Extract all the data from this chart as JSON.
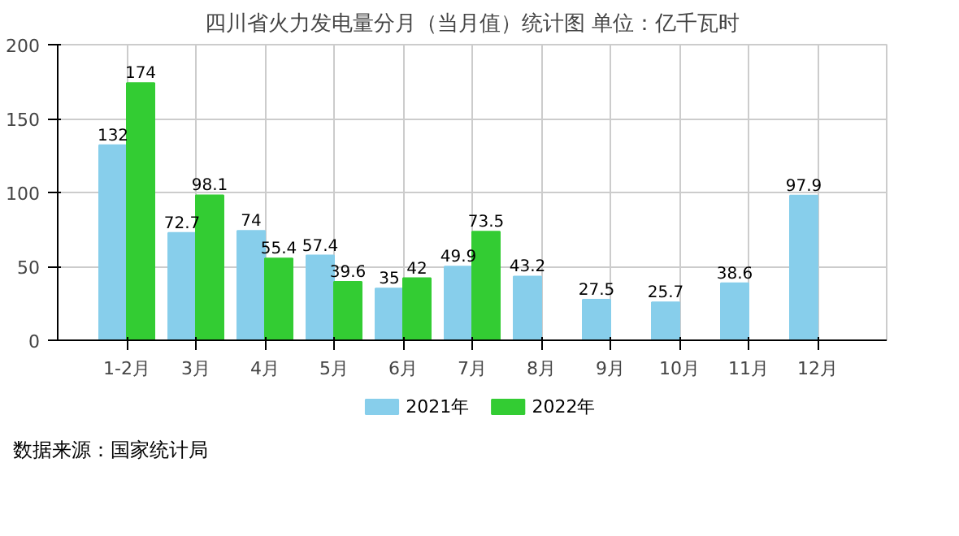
{
  "chart_data": {
    "type": "bar",
    "title": "四川省火力发电量分月（当月值）统计图 单位：亿千瓦时",
    "categories": [
      "1-2月",
      "3月",
      "4月",
      "5月",
      "6月",
      "7月",
      "8月",
      "9月",
      "10月",
      "11月",
      "12月"
    ],
    "series": [
      {
        "name": "2021年",
        "color": "#87ceeb",
        "values": [
          132,
          72.7,
          74,
          57.4,
          35,
          49.9,
          43.2,
          27.5,
          25.7,
          38.6,
          97.9
        ]
      },
      {
        "name": "2022年",
        "color": "#33cc33",
        "values": [
          174,
          98.1,
          55.4,
          39.6,
          42,
          73.5,
          null,
          null,
          null,
          null,
          null
        ]
      }
    ],
    "ylim": [
      0,
      200
    ],
    "yticks": [
      0,
      50,
      100,
      150,
      200
    ],
    "grid": true,
    "legend": "bottom",
    "data_labels": true,
    "annotations": [
      "数据来源：国家统计局"
    ]
  }
}
